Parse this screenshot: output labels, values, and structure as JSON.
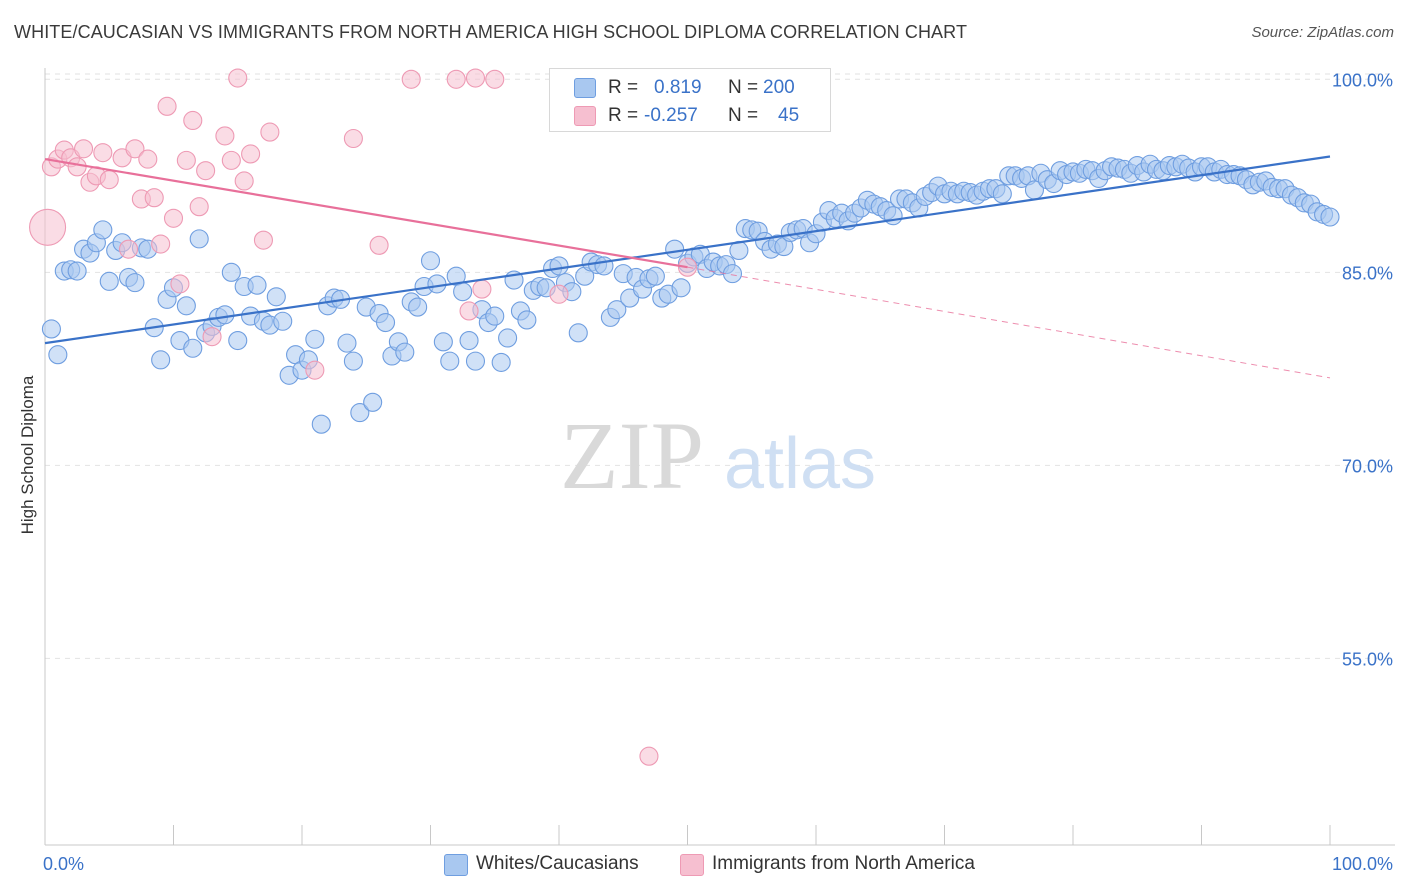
{
  "header": {
    "title": "WHITE/CAUCASIAN VS IMMIGRANTS FROM NORTH AMERICA HIGH SCHOOL DIPLOMA CORRELATION CHART",
    "source": "Source: ZipAtlas.com"
  },
  "watermark": {
    "zip": "ZIP",
    "atlas": "atlas"
  },
  "legend_top": {
    "r_label": "R =",
    "n_label": "N =",
    "series1": {
      "r": "0.819",
      "n": "200"
    },
    "series2": {
      "r": "-0.257",
      "n": "45"
    }
  },
  "legend_bottom": {
    "series1": "Whites/Caucasians",
    "series2": "Immigrants from North America"
  },
  "colors": {
    "blue_fill": "#a9c8f0",
    "blue_stroke": "#6f9ee0",
    "blue_line": "#3a72c8",
    "pink_fill": "#f6bfd0",
    "pink_stroke": "#ee9ab4",
    "pink_line": "#e8709a",
    "axis_text": "#3a72c8",
    "grid": "#e2e2e2"
  },
  "chart_data": {
    "type": "scatter",
    "title": "WHITE/CAUCASIAN VS IMMIGRANTS FROM NORTH AMERICA HIGH SCHOOL DIPLOMA CORRELATION CHART",
    "xlabel": "",
    "ylabel": "High School Diploma",
    "xlim": [
      0,
      100
    ],
    "ylim": [
      40.5,
      101.5
    ],
    "x_tick_labels": [
      "0.0%",
      "100.0%"
    ],
    "y_ticks": [
      55,
      70,
      85,
      100
    ],
    "y_tick_labels": [
      "55.0%",
      "70.0%",
      "85.0%",
      "100.0%"
    ],
    "grid": true,
    "legend": "top-center",
    "series": [
      {
        "name": "Whites/Caucasians",
        "r": 0.819,
        "n": 200,
        "trend": {
          "x0": 0,
          "y0": 79.5,
          "x1": 100,
          "y1": 94.0
        },
        "points": [
          [
            0.5,
            80.6
          ],
          [
            1,
            78.6
          ],
          [
            1.5,
            85.1
          ],
          [
            2,
            85.2
          ],
          [
            2.5,
            85.1
          ],
          [
            3,
            86.8
          ],
          [
            3.5,
            86.5
          ],
          [
            4,
            87.3
          ],
          [
            4.5,
            88.3
          ],
          [
            5,
            84.3
          ],
          [
            5.5,
            86.7
          ],
          [
            6,
            87.3
          ],
          [
            6.5,
            84.6
          ],
          [
            7,
            84.2
          ],
          [
            7.5,
            86.9
          ],
          [
            8,
            86.8
          ],
          [
            8.5,
            80.7
          ],
          [
            9,
            78.2
          ],
          [
            9.5,
            82.9
          ],
          [
            10,
            83.8
          ],
          [
            10.5,
            79.7
          ],
          [
            11,
            82.4
          ],
          [
            11.5,
            79.1
          ],
          [
            12,
            87.6
          ],
          [
            12.5,
            80.3
          ],
          [
            13,
            80.8
          ],
          [
            13.5,
            81.5
          ],
          [
            14,
            81.7
          ],
          [
            14.5,
            85.0
          ],
          [
            15,
            79.7
          ],
          [
            15.5,
            83.9
          ],
          [
            16,
            81.6
          ],
          [
            16.5,
            84.0
          ],
          [
            17,
            81.2
          ],
          [
            17.5,
            80.9
          ],
          [
            18,
            83.1
          ],
          [
            18.5,
            81.2
          ],
          [
            19,
            77.0
          ],
          [
            19.5,
            78.6
          ],
          [
            20,
            77.4
          ],
          [
            20.5,
            78.2
          ],
          [
            21,
            79.8
          ],
          [
            21.5,
            73.2
          ],
          [
            22,
            82.4
          ],
          [
            22.5,
            83.0
          ],
          [
            23,
            82.9
          ],
          [
            23.5,
            79.5
          ],
          [
            24,
            78.1
          ],
          [
            24.5,
            74.1
          ],
          [
            25,
            82.3
          ],
          [
            25.5,
            74.9
          ],
          [
            26,
            81.8
          ],
          [
            26.5,
            81.1
          ],
          [
            27,
            78.5
          ],
          [
            27.5,
            79.6
          ],
          [
            28,
            78.8
          ],
          [
            28.5,
            82.7
          ],
          [
            29,
            82.3
          ],
          [
            29.5,
            83.9
          ],
          [
            30,
            85.9
          ],
          [
            30.5,
            84.1
          ],
          [
            31,
            79.6
          ],
          [
            31.5,
            78.1
          ],
          [
            32,
            84.7
          ],
          [
            32.5,
            83.5
          ],
          [
            33,
            79.7
          ],
          [
            33.5,
            78.1
          ],
          [
            34,
            82.1
          ],
          [
            34.5,
            81.1
          ],
          [
            35,
            81.6
          ],
          [
            35.5,
            78.0
          ],
          [
            36,
            79.9
          ],
          [
            36.5,
            84.4
          ],
          [
            37,
            82.0
          ],
          [
            37.5,
            81.3
          ],
          [
            38,
            83.6
          ],
          [
            38.5,
            83.9
          ],
          [
            39,
            83.8
          ],
          [
            39.5,
            85.3
          ],
          [
            40,
            85.5
          ],
          [
            40.5,
            84.2
          ],
          [
            41,
            83.5
          ],
          [
            41.5,
            80.3
          ],
          [
            42,
            84.7
          ],
          [
            42.5,
            85.8
          ],
          [
            43,
            85.6
          ],
          [
            43.5,
            85.5
          ],
          [
            44,
            81.5
          ],
          [
            44.5,
            82.1
          ],
          [
            45,
            84.9
          ],
          [
            45.5,
            83.0
          ],
          [
            46,
            84.6
          ],
          [
            46.5,
            83.7
          ],
          [
            47,
            84.5
          ],
          [
            47.5,
            84.7
          ],
          [
            48,
            83.0
          ],
          [
            48.5,
            83.3
          ],
          [
            49,
            86.8
          ],
          [
            49.5,
            83.8
          ],
          [
            50,
            85.7
          ],
          [
            50.5,
            86.2
          ],
          [
            51,
            86.4
          ],
          [
            51.5,
            85.3
          ],
          [
            52,
            85.8
          ],
          [
            52.5,
            85.5
          ],
          [
            53,
            85.6
          ],
          [
            53.5,
            84.9
          ],
          [
            54,
            86.7
          ],
          [
            54.5,
            88.4
          ],
          [
            55,
            88.3
          ],
          [
            55.5,
            88.2
          ],
          [
            56,
            87.4
          ],
          [
            56.5,
            86.8
          ],
          [
            57,
            87.2
          ],
          [
            57.5,
            87.0
          ],
          [
            58,
            88.1
          ],
          [
            58.5,
            88.3
          ],
          [
            59,
            88.4
          ],
          [
            59.5,
            87.3
          ],
          [
            60,
            88.0
          ],
          [
            60.5,
            88.9
          ],
          [
            61,
            89.8
          ],
          [
            61.5,
            89.2
          ],
          [
            62,
            89.6
          ],
          [
            62.5,
            89.0
          ],
          [
            63,
            89.6
          ],
          [
            63.5,
            90.0
          ],
          [
            64,
            90.6
          ],
          [
            64.5,
            90.3
          ],
          [
            65,
            90.1
          ],
          [
            65.5,
            89.8
          ],
          [
            66,
            89.4
          ],
          [
            66.5,
            90.7
          ],
          [
            67,
            90.7
          ],
          [
            67.5,
            90.4
          ],
          [
            68,
            90.0
          ],
          [
            68.5,
            90.9
          ],
          [
            69,
            91.2
          ],
          [
            69.5,
            91.7
          ],
          [
            70,
            91.1
          ],
          [
            70.5,
            91.3
          ],
          [
            71,
            91.1
          ],
          [
            71.5,
            91.3
          ],
          [
            72,
            91.2
          ],
          [
            72.5,
            91.0
          ],
          [
            73,
            91.3
          ],
          [
            73.5,
            91.5
          ],
          [
            74,
            91.5
          ],
          [
            74.5,
            91.1
          ],
          [
            75,
            92.5
          ],
          [
            75.5,
            92.5
          ],
          [
            76,
            92.3
          ],
          [
            76.5,
            92.5
          ],
          [
            77,
            91.4
          ],
          [
            77.5,
            92.7
          ],
          [
            78,
            92.2
          ],
          [
            78.5,
            91.9
          ],
          [
            79,
            92.9
          ],
          [
            79.5,
            92.6
          ],
          [
            80,
            92.8
          ],
          [
            80.5,
            92.7
          ],
          [
            81,
            93.0
          ],
          [
            81.5,
            92.9
          ],
          [
            82,
            92.3
          ],
          [
            82.5,
            92.9
          ],
          [
            83,
            93.2
          ],
          [
            83.5,
            93.1
          ],
          [
            84,
            93.0
          ],
          [
            84.5,
            92.7
          ],
          [
            85,
            93.3
          ],
          [
            85.5,
            92.8
          ],
          [
            86,
            93.4
          ],
          [
            86.5,
            93.0
          ],
          [
            87,
            92.9
          ],
          [
            87.5,
            93.3
          ],
          [
            88,
            93.2
          ],
          [
            88.5,
            93.4
          ],
          [
            89,
            93.1
          ],
          [
            89.5,
            92.8
          ],
          [
            90,
            93.2
          ],
          [
            90.5,
            93.2
          ],
          [
            91,
            92.8
          ],
          [
            91.5,
            93.0
          ],
          [
            92,
            92.6
          ],
          [
            92.5,
            92.6
          ],
          [
            93,
            92.5
          ],
          [
            93.5,
            92.2
          ],
          [
            94,
            91.8
          ],
          [
            94.5,
            92.0
          ],
          [
            95,
            92.1
          ],
          [
            95.5,
            91.6
          ],
          [
            96,
            91.5
          ],
          [
            96.5,
            91.5
          ],
          [
            97,
            91.0
          ],
          [
            97.5,
            90.8
          ],
          [
            98,
            90.4
          ],
          [
            98.5,
            90.3
          ],
          [
            99,
            89.7
          ],
          [
            99.5,
            89.5
          ],
          [
            100,
            89.3
          ]
        ]
      },
      {
        "name": "Immigrants from North America",
        "r": -0.257,
        "n": 45,
        "trend": {
          "x0": 0,
          "y0": 93.8,
          "x1": 50,
          "y1": 85.4,
          "x_dash_end": 100,
          "y_dash_end": 76.8
        },
        "points": [
          [
            0.2,
            88.5
          ],
          [
            0.5,
            93.2
          ],
          [
            1,
            93.8
          ],
          [
            1.5,
            94.5
          ],
          [
            2,
            93.9
          ],
          [
            2.5,
            93.2
          ],
          [
            3,
            94.6
          ],
          [
            3.5,
            92.0
          ],
          [
            4,
            92.5
          ],
          [
            4.5,
            94.3
          ],
          [
            5,
            92.2
          ],
          [
            6,
            93.9
          ],
          [
            6.5,
            86.8
          ],
          [
            7,
            94.6
          ],
          [
            7.5,
            90.7
          ],
          [
            8,
            93.8
          ],
          [
            8.5,
            90.8
          ],
          [
            9,
            87.2
          ],
          [
            9.5,
            97.9
          ],
          [
            10,
            89.2
          ],
          [
            10.5,
            84.1
          ],
          [
            11,
            93.7
          ],
          [
            11.5,
            96.8
          ],
          [
            12,
            90.1
          ],
          [
            12.5,
            92.9
          ],
          [
            13,
            80.0
          ],
          [
            14,
            95.6
          ],
          [
            14.5,
            93.7
          ],
          [
            15,
            100.1
          ],
          [
            15.5,
            92.1
          ],
          [
            16,
            94.2
          ],
          [
            17,
            87.5
          ],
          [
            17.5,
            95.9
          ],
          [
            21,
            77.4
          ],
          [
            24,
            95.4
          ],
          [
            26,
            87.1
          ],
          [
            28.5,
            100.0
          ],
          [
            32,
            100.0
          ],
          [
            33.5,
            100.1
          ],
          [
            33,
            82.0
          ],
          [
            34,
            83.7
          ],
          [
            35,
            100.0
          ],
          [
            40,
            83.3
          ],
          [
            47,
            47.4
          ],
          [
            50,
            85.4
          ]
        ]
      }
    ]
  }
}
